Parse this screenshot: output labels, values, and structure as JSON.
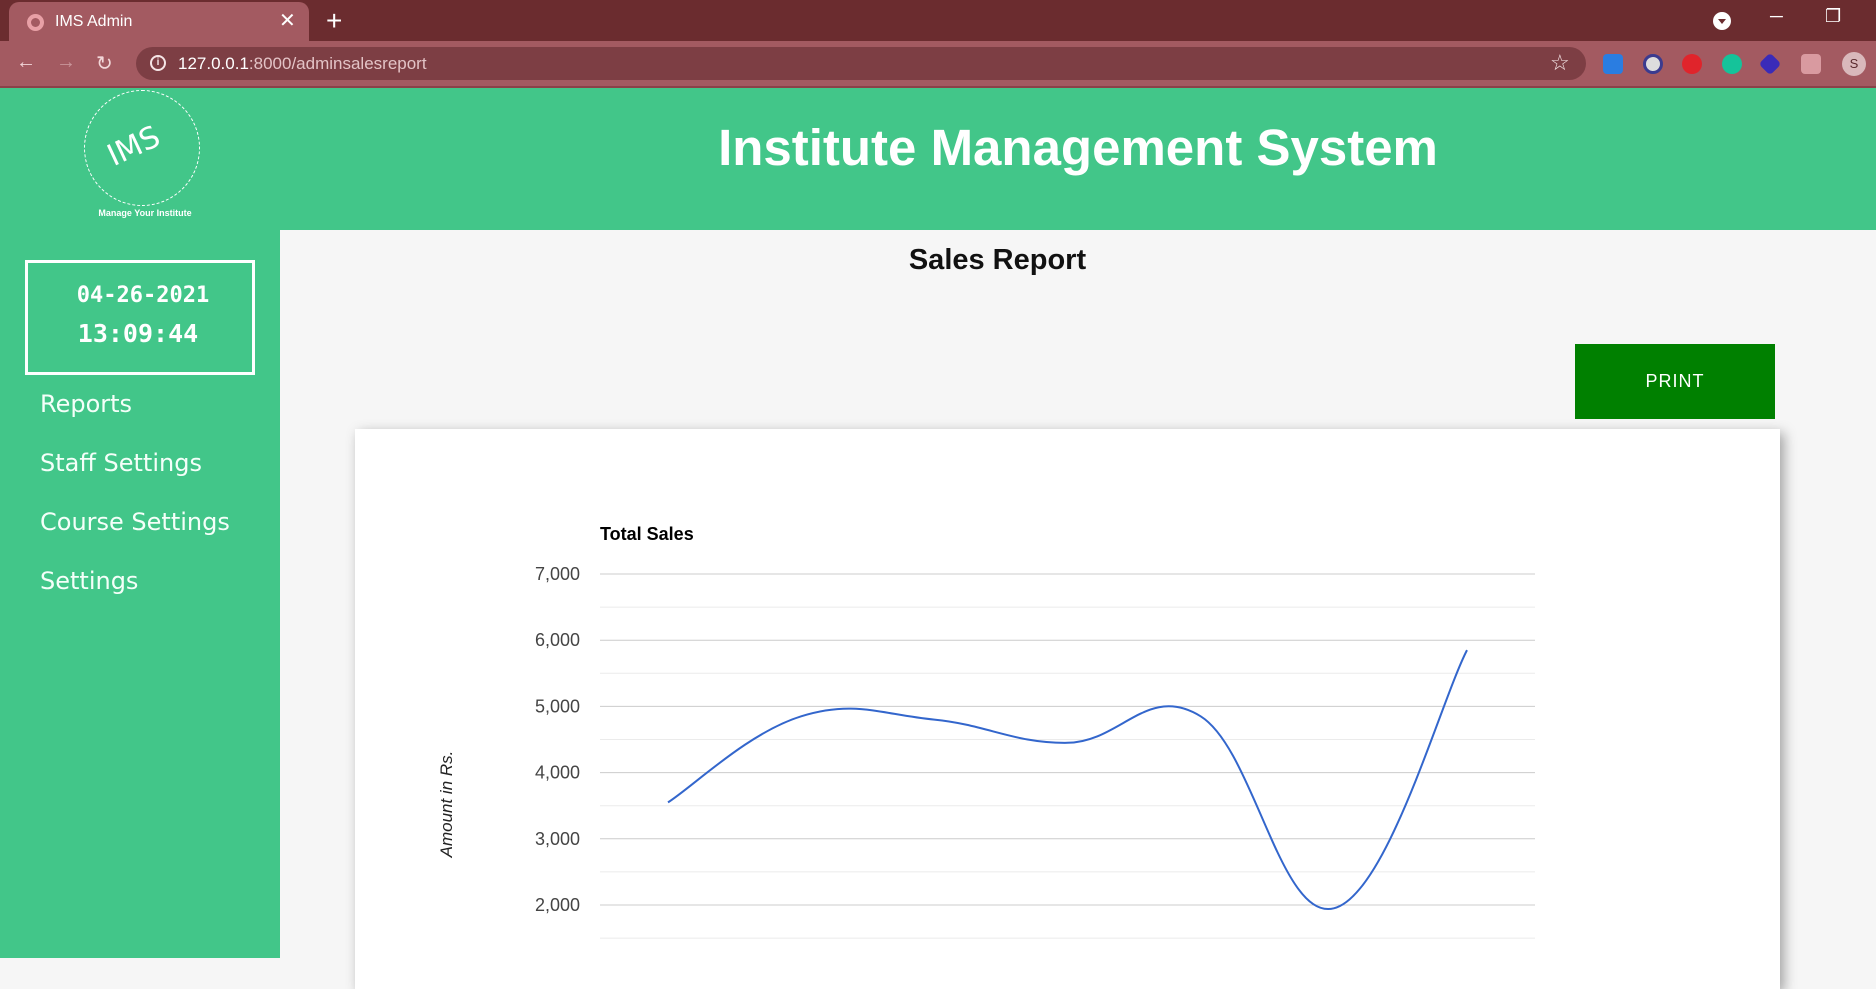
{
  "browser": {
    "tab_title": "IMS Admin",
    "url_host": "127.0.0.1",
    "url_path": ":8000/adminsalesreport"
  },
  "header": {
    "title": "Institute Management System",
    "logo_text": "IMS",
    "logo_tagline": "Manage Your Institute"
  },
  "clock": {
    "date": "04-26-2021",
    "time": "13:09:44"
  },
  "sidebar": {
    "items": [
      {
        "label": "Reports"
      },
      {
        "label": "Staff Settings"
      },
      {
        "label": "Course Settings"
      },
      {
        "label": "Settings"
      }
    ]
  },
  "main": {
    "title": "Sales Report",
    "print_label": "PRINT"
  },
  "colors": {
    "brand_green": "#42c689",
    "print_green": "#008000",
    "line": "#3366cc",
    "browser_frame": "#6b2c2f"
  },
  "chart_data": {
    "type": "line",
    "title": "Total Sales",
    "ylabel": "Amount in Rs.",
    "xlabel": "",
    "ylim": [
      1500,
      7000
    ],
    "yticks": [
      2000,
      3000,
      4000,
      5000,
      6000,
      7000
    ],
    "ytick_labels": [
      "2,000",
      "3,000",
      "4,000",
      "5,000",
      "6,000",
      "7,000"
    ],
    "grid": true,
    "curve": "smooth",
    "series": [
      {
        "values": [
          3550,
          4850,
          4800,
          4450,
          4850,
          1950,
          5850
        ]
      }
    ]
  }
}
